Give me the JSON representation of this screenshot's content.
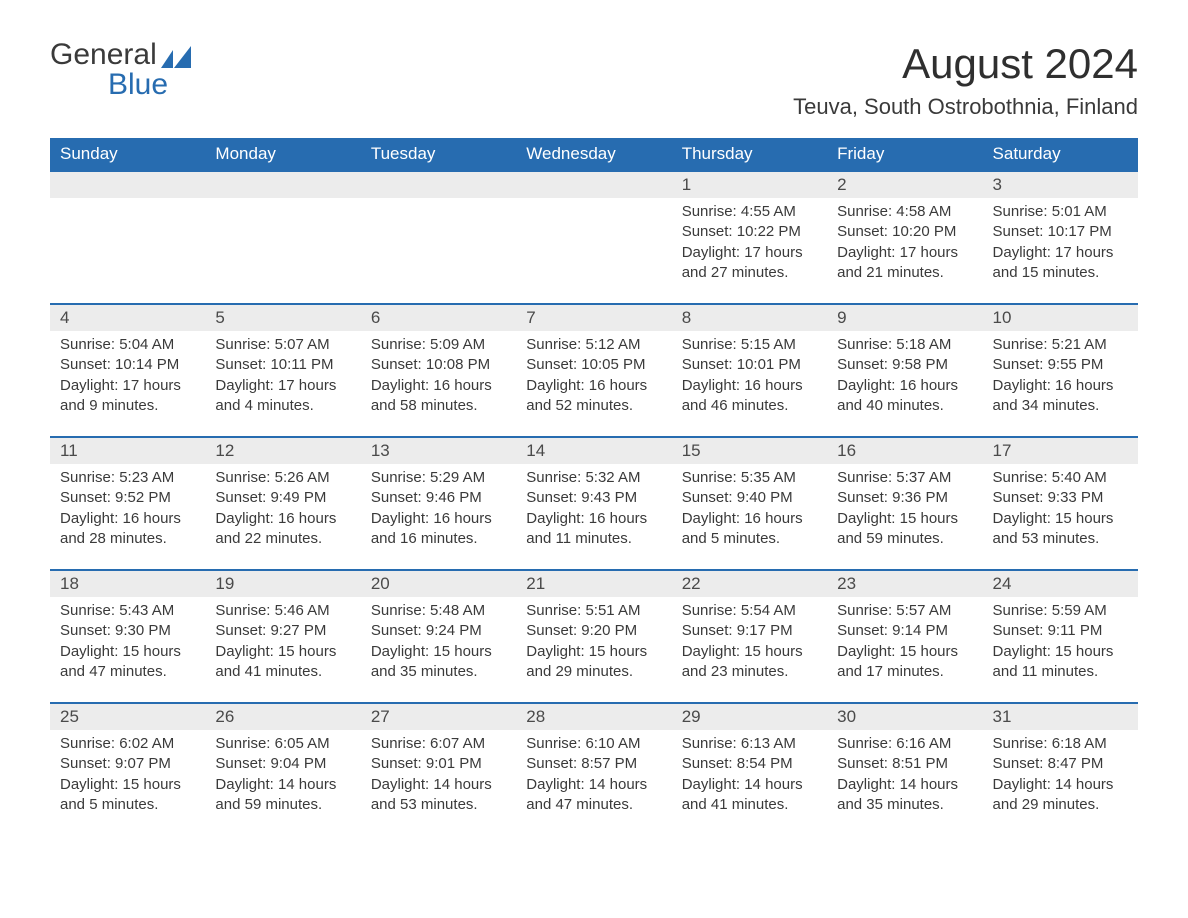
{
  "brand": {
    "text_top": "General",
    "text_bottom": "Blue",
    "accent_color": "#276cb0"
  },
  "title": "August 2024",
  "subtitle": "Teuva, South Ostrobothnia, Finland",
  "colors": {
    "header_bg": "#276cb0",
    "header_text": "#ffffff",
    "daynum_bg": "#ececec",
    "row_divider": "#276cb0",
    "body_text": "#3a3a3a",
    "page_bg": "#ffffff"
  },
  "typography": {
    "title_fontsize": 42,
    "subtitle_fontsize": 22,
    "header_fontsize": 17,
    "daynum_fontsize": 17,
    "cell_fontsize": 15
  },
  "weekdays": [
    "Sunday",
    "Monday",
    "Tuesday",
    "Wednesday",
    "Thursday",
    "Friday",
    "Saturday"
  ],
  "weeks": [
    [
      null,
      null,
      null,
      null,
      {
        "day": "1",
        "sunrise": "4:55 AM",
        "sunset": "10:22 PM",
        "daylight": "17 hours and 27 minutes."
      },
      {
        "day": "2",
        "sunrise": "4:58 AM",
        "sunset": "10:20 PM",
        "daylight": "17 hours and 21 minutes."
      },
      {
        "day": "3",
        "sunrise": "5:01 AM",
        "sunset": "10:17 PM",
        "daylight": "17 hours and 15 minutes."
      }
    ],
    [
      {
        "day": "4",
        "sunrise": "5:04 AM",
        "sunset": "10:14 PM",
        "daylight": "17 hours and 9 minutes."
      },
      {
        "day": "5",
        "sunrise": "5:07 AM",
        "sunset": "10:11 PM",
        "daylight": "17 hours and 4 minutes."
      },
      {
        "day": "6",
        "sunrise": "5:09 AM",
        "sunset": "10:08 PM",
        "daylight": "16 hours and 58 minutes."
      },
      {
        "day": "7",
        "sunrise": "5:12 AM",
        "sunset": "10:05 PM",
        "daylight": "16 hours and 52 minutes."
      },
      {
        "day": "8",
        "sunrise": "5:15 AM",
        "sunset": "10:01 PM",
        "daylight": "16 hours and 46 minutes."
      },
      {
        "day": "9",
        "sunrise": "5:18 AM",
        "sunset": "9:58 PM",
        "daylight": "16 hours and 40 minutes."
      },
      {
        "day": "10",
        "sunrise": "5:21 AM",
        "sunset": "9:55 PM",
        "daylight": "16 hours and 34 minutes."
      }
    ],
    [
      {
        "day": "11",
        "sunrise": "5:23 AM",
        "sunset": "9:52 PM",
        "daylight": "16 hours and 28 minutes."
      },
      {
        "day": "12",
        "sunrise": "5:26 AM",
        "sunset": "9:49 PM",
        "daylight": "16 hours and 22 minutes."
      },
      {
        "day": "13",
        "sunrise": "5:29 AM",
        "sunset": "9:46 PM",
        "daylight": "16 hours and 16 minutes."
      },
      {
        "day": "14",
        "sunrise": "5:32 AM",
        "sunset": "9:43 PM",
        "daylight": "16 hours and 11 minutes."
      },
      {
        "day": "15",
        "sunrise": "5:35 AM",
        "sunset": "9:40 PM",
        "daylight": "16 hours and 5 minutes."
      },
      {
        "day": "16",
        "sunrise": "5:37 AM",
        "sunset": "9:36 PM",
        "daylight": "15 hours and 59 minutes."
      },
      {
        "day": "17",
        "sunrise": "5:40 AM",
        "sunset": "9:33 PM",
        "daylight": "15 hours and 53 minutes."
      }
    ],
    [
      {
        "day": "18",
        "sunrise": "5:43 AM",
        "sunset": "9:30 PM",
        "daylight": "15 hours and 47 minutes."
      },
      {
        "day": "19",
        "sunrise": "5:46 AM",
        "sunset": "9:27 PM",
        "daylight": "15 hours and 41 minutes."
      },
      {
        "day": "20",
        "sunrise": "5:48 AM",
        "sunset": "9:24 PM",
        "daylight": "15 hours and 35 minutes."
      },
      {
        "day": "21",
        "sunrise": "5:51 AM",
        "sunset": "9:20 PM",
        "daylight": "15 hours and 29 minutes."
      },
      {
        "day": "22",
        "sunrise": "5:54 AM",
        "sunset": "9:17 PM",
        "daylight": "15 hours and 23 minutes."
      },
      {
        "day": "23",
        "sunrise": "5:57 AM",
        "sunset": "9:14 PM",
        "daylight": "15 hours and 17 minutes."
      },
      {
        "day": "24",
        "sunrise": "5:59 AM",
        "sunset": "9:11 PM",
        "daylight": "15 hours and 11 minutes."
      }
    ],
    [
      {
        "day": "25",
        "sunrise": "6:02 AM",
        "sunset": "9:07 PM",
        "daylight": "15 hours and 5 minutes."
      },
      {
        "day": "26",
        "sunrise": "6:05 AM",
        "sunset": "9:04 PM",
        "daylight": "14 hours and 59 minutes."
      },
      {
        "day": "27",
        "sunrise": "6:07 AM",
        "sunset": "9:01 PM",
        "daylight": "14 hours and 53 minutes."
      },
      {
        "day": "28",
        "sunrise": "6:10 AM",
        "sunset": "8:57 PM",
        "daylight": "14 hours and 47 minutes."
      },
      {
        "day": "29",
        "sunrise": "6:13 AM",
        "sunset": "8:54 PM",
        "daylight": "14 hours and 41 minutes."
      },
      {
        "day": "30",
        "sunrise": "6:16 AM",
        "sunset": "8:51 PM",
        "daylight": "14 hours and 35 minutes."
      },
      {
        "day": "31",
        "sunrise": "6:18 AM",
        "sunset": "8:47 PM",
        "daylight": "14 hours and 29 minutes."
      }
    ]
  ],
  "labels": {
    "sunrise": "Sunrise:",
    "sunset": "Sunset:",
    "daylight": "Daylight:"
  }
}
